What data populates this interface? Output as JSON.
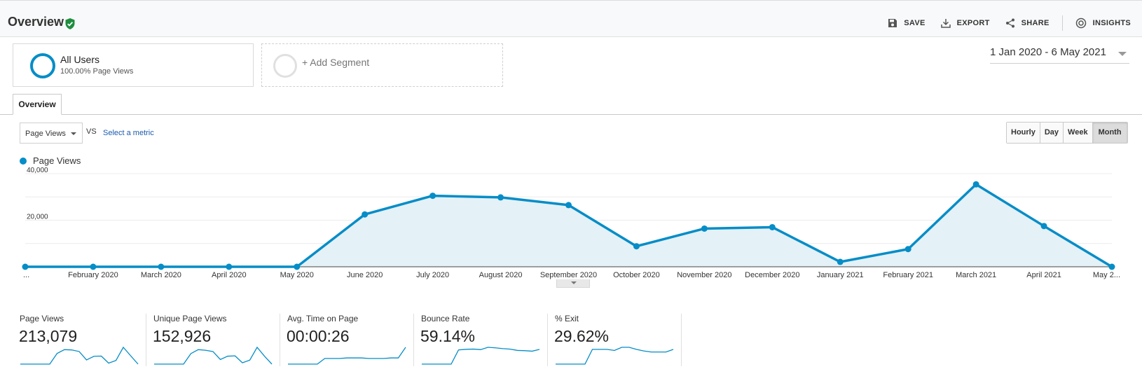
{
  "header": {
    "title": "Overview",
    "actions": [
      {
        "label": "SAVE",
        "icon": "save-icon"
      },
      {
        "label": "EXPORT",
        "icon": "download-icon"
      },
      {
        "label": "SHARE",
        "icon": "share-icon"
      },
      {
        "label": "INSIGHTS",
        "icon": "insights-icon"
      }
    ]
  },
  "segments": {
    "all_users": {
      "name": "All Users",
      "sub": "100.00% Page Views"
    },
    "add_label": "+ Add Segment"
  },
  "date_range": "1 Jan 2020 - 6 May 2021",
  "tabs": [
    "Overview"
  ],
  "controls": {
    "metric": "Page Views",
    "vs": "VS",
    "select_metric": "Select a metric",
    "granularity": [
      "Hourly",
      "Day",
      "Week",
      "Month"
    ],
    "active_granularity": "Month"
  },
  "colors": {
    "accent": "#058dc7",
    "area_fill": "#e4f1f7",
    "verified": "#1e8e3e"
  },
  "chart_data": {
    "type": "line",
    "x": [
      "...",
      "February 2020",
      "March 2020",
      "April 2020",
      "May 2020",
      "June 2020",
      "July 2020",
      "August 2020",
      "September 2020",
      "October 2020",
      "November 2020",
      "December 2020",
      "January 2021",
      "February 2021",
      "March 2021",
      "April 2021",
      "May 2..."
    ],
    "series": [
      {
        "name": "Page Views",
        "values": [
          0,
          0,
          0,
          0,
          0,
          22500,
          30500,
          29800,
          26500,
          8800,
          16400,
          17000,
          2100,
          7600,
          35400,
          17500,
          0
        ]
      }
    ],
    "yticks": [
      "20,000",
      "40,000"
    ],
    "ylim": [
      0,
      40000
    ],
    "legend": "top-left",
    "grid": true
  },
  "scorecards": [
    {
      "label": "Page Views",
      "value": "213,079",
      "spark": [
        0,
        0,
        0,
        0,
        0,
        22500,
        30500,
        29800,
        26500,
        8800,
        16400,
        17000,
        2100,
        7600,
        35400,
        17500,
        0
      ]
    },
    {
      "label": "Unique Page Views",
      "value": "152,926",
      "spark": [
        0,
        0,
        0,
        0,
        0,
        16000,
        22000,
        21000,
        19000,
        7000,
        12000,
        12500,
        2000,
        6000,
        25500,
        12000,
        0
      ]
    },
    {
      "label": "Avg. Time on Page",
      "value": "00:00:26",
      "spark": [
        0,
        0,
        0,
        0,
        0,
        10,
        10,
        10,
        11,
        11,
        11,
        10,
        10,
        10,
        11,
        11,
        30
      ]
    },
    {
      "label": "Bounce Rate",
      "value": "59.14%",
      "spark": [
        0,
        0,
        0,
        0,
        0,
        55,
        57,
        58,
        56,
        65,
        63,
        60,
        58,
        53,
        52,
        50,
        57
      ]
    },
    {
      "label": "% Exit",
      "value": "29.62%",
      "spark": [
        0,
        0,
        0,
        0,
        0,
        28,
        28,
        28,
        26,
        32,
        32,
        28,
        25,
        23,
        23,
        23,
        28
      ]
    }
  ]
}
